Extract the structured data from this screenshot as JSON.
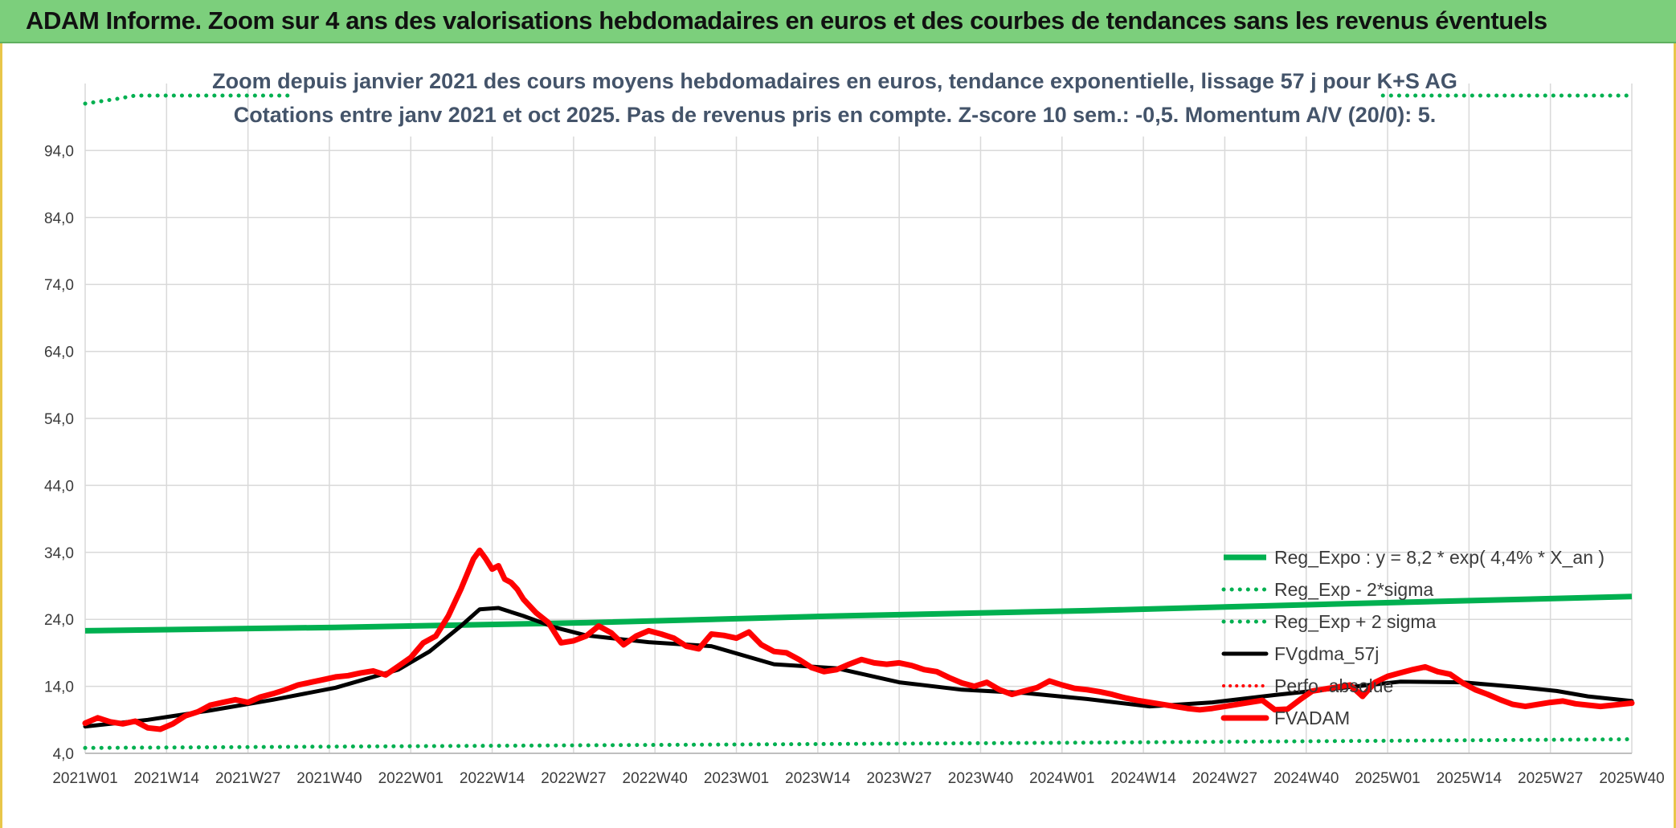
{
  "header": {
    "title": "ADAM Informe. Zoom sur 4 ans des valorisations hebdomadaires en euros et des courbes de tendances sans les revenus éventuels"
  },
  "colors": {
    "banner": "#7ccf7c",
    "reg_expo": "#00b050",
    "fvgdma": "#000000",
    "fvadam": "#ff0000",
    "perfo": "#ff0000",
    "grid": "#d9d9d9"
  },
  "chart_data": {
    "type": "line",
    "title": "Zoom depuis janvier 2021 des cours moyens hebdomadaires en euros, tendance exponentielle, lissage 57 j pour K+S AG",
    "subtitle": "Cotations entre janv 2021 et oct 2025. Pas de revenus pris en compte. Z-score 10 sem.: -0,5. Momentum A/V (20/0): 5.",
    "xlabel": "",
    "ylabel": "",
    "ylim": [
      4,
      104
    ],
    "yticks": [
      "4,0",
      "14,0",
      "24,0",
      "34,0",
      "44,0",
      "54,0",
      "64,0",
      "74,0",
      "84,0",
      "94,0"
    ],
    "xticks": [
      "2021W01",
      "2021W14",
      "2021W27",
      "2021W40",
      "2022W01",
      "2022W14",
      "2022W27",
      "2022W40",
      "2023W01",
      "2023W14",
      "2023W27",
      "2023W40",
      "2024W01",
      "2024W14",
      "2024W27",
      "2024W40",
      "2025W01",
      "2025W14",
      "2025W27",
      "2025W40"
    ],
    "x_range_weeks": [
      0,
      247
    ],
    "legend_position": "bottom-right",
    "series": [
      {
        "name": "Reg_Expo : y = 8,2 * exp( 4,4% *  X_an )",
        "style": "solid-thick",
        "x": [
          0,
          40,
          80,
          120,
          160,
          200,
          247
        ],
        "values": [
          22.3,
          22.8,
          23.5,
          24.5,
          25.3,
          26.3,
          27.4
        ]
      },
      {
        "name": "Reg_Exp - 2*sigma",
        "style": "dotted",
        "x": [
          0,
          80,
          160,
          247
        ],
        "values": [
          4.8,
          5.2,
          5.6,
          6.1
        ]
      },
      {
        "name": "Reg_Exp + 2 sigma",
        "style": "dotted",
        "x": [
          0,
          5,
          8,
          32,
          208,
          247
        ],
        "values": [
          101,
          101.7,
          102.2,
          102.2,
          102.2,
          102.2
        ]
      },
      {
        "name": "FVgdma_57j",
        "style": "solid",
        "x": [
          0,
          10,
          20,
          30,
          40,
          50,
          55,
          60,
          63,
          66,
          70,
          75,
          80,
          90,
          100,
          110,
          120,
          130,
          140,
          150,
          160,
          170,
          180,
          190,
          200,
          210,
          220,
          230,
          235,
          240,
          247
        ],
        "values": [
          8.0,
          9.0,
          10.4,
          12.0,
          13.8,
          16.5,
          19.2,
          23.0,
          25.5,
          25.7,
          24.5,
          22.8,
          21.6,
          20.6,
          20.0,
          17.3,
          16.7,
          14.6,
          13.5,
          13.0,
          12.1,
          11.0,
          11.6,
          12.7,
          13.7,
          14.7,
          14.6,
          13.8,
          13.3,
          12.5,
          11.8
        ]
      },
      {
        "name": "Perfo. absolue",
        "style": "dotted",
        "x": [],
        "values": []
      },
      {
        "name": "FVADAM",
        "style": "solid-thick",
        "x": [
          0,
          2,
          4,
          6,
          8,
          10,
          12,
          14,
          16,
          18,
          20,
          22,
          24,
          26,
          28,
          30,
          32,
          34,
          36,
          38,
          40,
          42,
          44,
          46,
          48,
          50,
          52,
          54,
          56,
          58,
          60,
          62,
          63,
          64,
          65,
          66,
          67,
          68,
          69,
          70,
          72,
          74,
          76,
          78,
          80,
          82,
          84,
          86,
          88,
          90,
          92,
          94,
          96,
          98,
          100,
          102,
          104,
          106,
          108,
          110,
          112,
          114,
          116,
          118,
          120,
          122,
          124,
          126,
          128,
          130,
          132,
          134,
          136,
          138,
          140,
          142,
          144,
          146,
          148,
          150,
          152,
          154,
          156,
          158,
          160,
          162,
          164,
          166,
          168,
          170,
          172,
          174,
          176,
          178,
          180,
          182,
          184,
          186,
          188,
          190,
          192,
          194,
          196,
          198,
          200,
          202,
          204,
          206,
          208,
          210,
          212,
          214,
          216,
          218,
          220,
          222,
          224,
          226,
          228,
          230,
          232,
          234,
          236,
          238,
          240,
          242,
          244,
          246,
          247
        ],
        "values": [
          8.5,
          9.3,
          8.7,
          8.4,
          8.8,
          7.8,
          7.6,
          8.4,
          9.6,
          10.2,
          11.2,
          11.6,
          12.0,
          11.6,
          12.4,
          12.9,
          13.5,
          14.2,
          14.6,
          15.0,
          15.4,
          15.6,
          16.0,
          16.3,
          15.7,
          17.0,
          18.3,
          20.5,
          21.5,
          24.5,
          28.5,
          33.0,
          34.3,
          33.0,
          31.5,
          32.0,
          30.0,
          29.5,
          28.5,
          27.0,
          25.0,
          23.5,
          20.5,
          20.8,
          21.5,
          23.0,
          22.0,
          20.2,
          21.5,
          22.3,
          21.8,
          21.2,
          20.0,
          19.6,
          21.8,
          21.6,
          21.2,
          22.1,
          20.2,
          19.2,
          19.0,
          18.0,
          16.8,
          16.2,
          16.5,
          17.3,
          18.0,
          17.5,
          17.3,
          17.5,
          17.1,
          16.5,
          16.2,
          15.3,
          14.5,
          14.0,
          14.6,
          13.5,
          12.8,
          13.3,
          13.8,
          14.8,
          14.2,
          13.7,
          13.5,
          13.2,
          12.8,
          12.3,
          11.9,
          11.6,
          11.3,
          11.0,
          10.7,
          10.5,
          10.7,
          11.0,
          11.3,
          11.6,
          11.9,
          10.5,
          10.6,
          12.0,
          13.3,
          13.6,
          13.9,
          14.2,
          12.5,
          14.6,
          15.5,
          16.0,
          16.5,
          16.9,
          16.2,
          15.8,
          14.5,
          13.5,
          12.8,
          12.0,
          11.3,
          11.0,
          11.3,
          11.6,
          11.8,
          11.4,
          11.2,
          11.0,
          11.2,
          11.4,
          11.5
        ]
      }
    ]
  }
}
